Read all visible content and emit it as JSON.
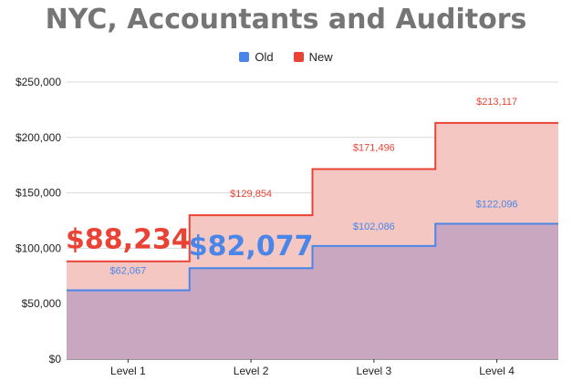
{
  "title": "NYC, Accountants and Auditors",
  "colors": {
    "old": "#4a86e8",
    "new": "#ea4335",
    "fill_new": "#f4c7c3",
    "fill_old": "#c9a7c0",
    "title": "#757575",
    "grid": "#d9d9d9"
  },
  "chart_data": {
    "type": "area",
    "title": "NYC, Accountants and Auditors",
    "categories": [
      "Level 1",
      "Level 2",
      "Level 3",
      "Level 4"
    ],
    "series": [
      {
        "name": "Old",
        "values": [
          62067,
          82077,
          102086,
          122096
        ],
        "labels": [
          "$62,067",
          "$82,077",
          "$102,086",
          "$122,096"
        ]
      },
      {
        "name": "New",
        "values": [
          88234,
          129854,
          171496,
          213117
        ],
        "labels": [
          "$88,234",
          "$129,854",
          "$171,496",
          "$213,117"
        ]
      }
    ],
    "yticks": [
      "$0",
      "$50,000",
      "$100,000",
      "$150,000",
      "$200,000",
      "$250,000"
    ],
    "ylim": [
      0,
      250000
    ],
    "legend_position": "top",
    "step": true,
    "annotations": [
      {
        "text": "$88,234",
        "series": "New",
        "category": "Level 1"
      },
      {
        "text": "$82,077",
        "series": "Old",
        "category": "Level 2"
      }
    ]
  }
}
